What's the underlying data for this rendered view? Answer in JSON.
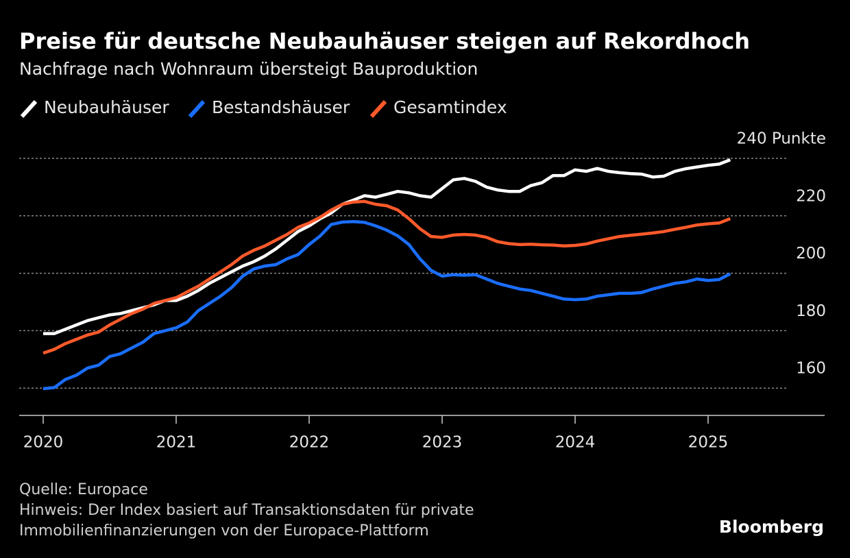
{
  "chart_data": {
    "type": "line",
    "title": "Preise für deutsche Neubauhäuser steigen auf Rekordhoch",
    "subtitle": "Nachfrage nach Wohnraum übersteigt Bauproduktion",
    "categories": [
      "2020",
      null,
      null,
      null,
      null,
      null,
      null,
      null,
      null,
      null,
      null,
      null,
      "2021",
      null,
      null,
      null,
      null,
      null,
      null,
      null,
      null,
      null,
      null,
      null,
      "2022",
      null,
      null,
      null,
      null,
      null,
      null,
      null,
      null,
      null,
      null,
      null,
      "2023",
      null,
      null,
      null,
      null,
      null,
      null,
      null,
      null,
      null,
      null,
      null,
      "2024",
      null,
      null,
      null,
      null,
      null,
      null,
      null,
      null,
      null,
      null,
      null,
      "2025",
      null,
      null
    ],
    "series": [
      {
        "name": "Neubauhäuser",
        "color": "#ffffff",
        "values": [
          179,
          179,
          180.5,
          182,
          183.5,
          184.5,
          185.5,
          186,
          187,
          188,
          189,
          190.5,
          190.5,
          192,
          194,
          196.5,
          198.5,
          200.5,
          202.5,
          204,
          206,
          208.5,
          211.5,
          214.5,
          216.5,
          219,
          221,
          224,
          225.5,
          227,
          226.5,
          227.5,
          228.5,
          228,
          227,
          226.5,
          229.5,
          232.5,
          233,
          232,
          230,
          229,
          228.5,
          228.5,
          230.5,
          231.5,
          234,
          234,
          236,
          235.5,
          236.5,
          235.5,
          235,
          234.7,
          234.5,
          233.5,
          233.8,
          235.5,
          236.4,
          237,
          237.6,
          238,
          239.5
        ]
      },
      {
        "name": "Bestandshäuser",
        "color": "#1a6eff",
        "values": [
          159.8,
          160.2,
          163,
          164.5,
          167,
          168,
          171,
          172,
          174,
          176,
          179,
          180,
          181,
          183,
          187,
          189.5,
          192,
          195,
          199,
          201.5,
          202.5,
          203,
          205,
          206.5,
          210,
          213,
          217,
          217.8,
          218,
          217.7,
          216.5,
          215,
          213,
          210,
          205,
          201,
          199,
          199.5,
          199.3,
          199.5,
          198,
          196.5,
          195.5,
          194.5,
          194,
          193,
          192,
          191,
          190.8,
          191,
          192,
          192.5,
          193,
          193,
          193.3,
          194.5,
          195.5,
          196.5,
          197,
          198,
          197.5,
          197.8,
          199.8
        ]
      },
      {
        "name": "Gesamtindex",
        "color": "#ff5a2b",
        "values": [
          172.2,
          173.5,
          175.5,
          177,
          178.5,
          179.5,
          182,
          184,
          186,
          187.5,
          189.5,
          190.5,
          191.5,
          193.5,
          195.5,
          198,
          200.5,
          203,
          206,
          208,
          209.5,
          211.5,
          213.5,
          216,
          217.5,
          219.5,
          222,
          224,
          224.8,
          225,
          224,
          223.5,
          222,
          219,
          215.5,
          212.8,
          212.5,
          213.3,
          213.5,
          213.3,
          212.5,
          211,
          210.3,
          210,
          210.1,
          209.9,
          209.8,
          209.5,
          209.7,
          210.2,
          211.2,
          212,
          212.8,
          213.2,
          213.6,
          214,
          214.5,
          215.3,
          216,
          216.8,
          217.2,
          217.5,
          219
        ]
      }
    ],
    "ylim": [
      150.5,
      240
    ],
    "yticks": [
      160,
      180,
      200,
      220,
      {
        "value": 240,
        "label": "240 Punkte"
      }
    ],
    "grid": true,
    "source": "Quelle: Europace",
    "note": [
      "Hinweis: Der Index basiert auf Transaktionsdaten für private",
      "Immobilienfinanzierungen von der Europace-Plattform"
    ],
    "brand": "Bloomberg"
  }
}
